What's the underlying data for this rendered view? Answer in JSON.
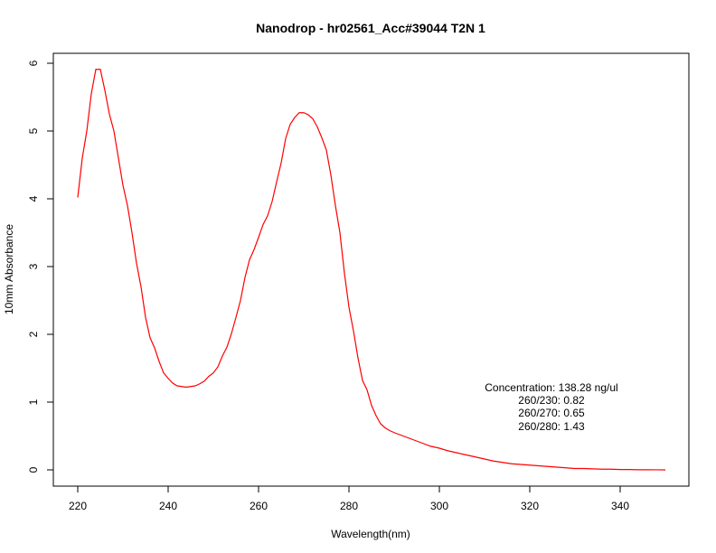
{
  "chart_data": {
    "type": "line",
    "title": "Nanodrop - hr02561_Acc#39044 T2N 1",
    "xlabel": "Wavelength(nm)",
    "ylabel": "10mm Absorbance",
    "xlim": [
      220,
      350
    ],
    "ylim": [
      0,
      6
    ],
    "xticks": [
      "220",
      "240",
      "260",
      "280",
      "300",
      "320",
      "340"
    ],
    "yticks": [
      "0",
      "1",
      "2",
      "3",
      "4",
      "5",
      "6"
    ],
    "grid": false,
    "line_color": "#ff0000",
    "series": [
      {
        "x": [
          220,
          221,
          222,
          223,
          224,
          225,
          226,
          227,
          228,
          229,
          230,
          231,
          232,
          233,
          234,
          235,
          236,
          237,
          238,
          239,
          240,
          241,
          242,
          243,
          244,
          245,
          246,
          247,
          248,
          249,
          250,
          251,
          252,
          253,
          254,
          255,
          256,
          257,
          258,
          259,
          260,
          261,
          262,
          263,
          264,
          265,
          266,
          267,
          268,
          269,
          270,
          271,
          272,
          273,
          274,
          275,
          276,
          277,
          278,
          279,
          280,
          281,
          282,
          283,
          284,
          285,
          286,
          287,
          288,
          289,
          290,
          292,
          294,
          296,
          298,
          300,
          302,
          304,
          306,
          308,
          310,
          312,
          314,
          316,
          318,
          320,
          322,
          324,
          326,
          328,
          330,
          332,
          334,
          336,
          338,
          340,
          342,
          344,
          346,
          348,
          350
        ],
        "y": [
          4.02,
          4.6,
          5.0,
          5.55,
          5.91,
          5.91,
          5.6,
          5.25,
          5.0,
          4.6,
          4.2,
          3.9,
          3.5,
          3.05,
          2.7,
          2.25,
          1.95,
          1.8,
          1.6,
          1.43,
          1.35,
          1.28,
          1.24,
          1.23,
          1.22,
          1.23,
          1.24,
          1.27,
          1.31,
          1.38,
          1.43,
          1.52,
          1.68,
          1.81,
          2.01,
          2.25,
          2.5,
          2.84,
          3.1,
          3.25,
          3.43,
          3.62,
          3.75,
          3.96,
          4.25,
          4.53,
          4.89,
          5.1,
          5.2,
          5.27,
          5.27,
          5.24,
          5.18,
          5.06,
          4.9,
          4.72,
          4.35,
          3.9,
          3.5,
          2.9,
          2.4,
          2.05,
          1.65,
          1.32,
          1.18,
          0.95,
          0.8,
          0.68,
          0.62,
          0.58,
          0.55,
          0.5,
          0.45,
          0.4,
          0.35,
          0.32,
          0.28,
          0.25,
          0.22,
          0.19,
          0.16,
          0.13,
          0.11,
          0.09,
          0.08,
          0.07,
          0.06,
          0.05,
          0.04,
          0.03,
          0.02,
          0.02,
          0.015,
          0.01,
          0.01,
          0.005,
          0.005,
          0.002,
          0.002,
          0.001,
          0.0
        ]
      }
    ],
    "annotations": [
      "Concentration: 138.28 ng/ul",
      "260/230: 0.82",
      "260/270: 0.65",
      "260/280: 1.43"
    ]
  }
}
